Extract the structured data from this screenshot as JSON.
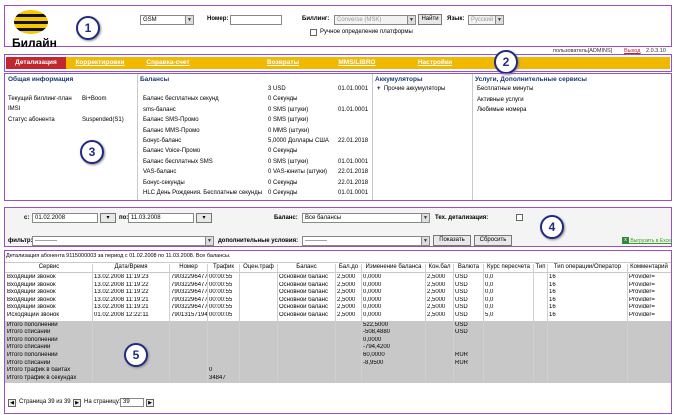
{
  "header": {
    "logo_text": "Билайн",
    "region_select": "GSM",
    "number_label": "Номер:",
    "number_value": "",
    "billing_label": "Биллинг:",
    "billing_select": "Converse (MSK)",
    "find_button": "Найти",
    "language_label": "Язык:",
    "language_select": "Русский",
    "manual_platform_label": "Ручное определение платформы",
    "user_text": "пользователь[ADMINS]",
    "user_link": "Выход",
    "version": "2.0.3.10"
  },
  "tabs": [
    {
      "label": "Детализация",
      "active": true
    },
    {
      "label": "Корректировки",
      "active": false
    },
    {
      "label": "Справка-счет",
      "active": false
    },
    {
      "label": "Возвраты",
      "active": false
    },
    {
      "label": "MMS/LIBRO",
      "active": false
    },
    {
      "label": "Настройки",
      "active": false
    }
  ],
  "info": {
    "general": {
      "title": "Общая информация",
      "rows": [
        {
          "label": "Текущий биллинг-план",
          "value": "Bi+Boom"
        },
        {
          "label": "IMSI",
          "value": ""
        },
        {
          "label": "Статус абонента",
          "value": "Suspended(S1)"
        }
      ]
    },
    "balances": {
      "title": "Балансы",
      "rows": [
        {
          "label": "",
          "value": "3 USD",
          "date": "01.01.0001"
        },
        {
          "label": "Баланс бесплатных секунд",
          "value": "0 Секунды",
          "date": ""
        },
        {
          "label": "sms-баланс",
          "value": "0 SMS (штуки)",
          "date": "01.01.0001"
        },
        {
          "label": "Баланс SMS-Промо",
          "value": "0 SMS (штуки)",
          "date": ""
        },
        {
          "label": "Баланс MMS-Промо",
          "value": "0 MMS (штуки)",
          "date": ""
        },
        {
          "label": "Бонус-баланс",
          "value": "5,0000 Доллары США",
          "date": "22.01.2018"
        },
        {
          "label": "Баланс Voice-Промо",
          "value": "0 Секунды",
          "date": ""
        },
        {
          "label": "Баланс бесплатных SMS",
          "value": "0 SMS (штуки)",
          "date": "01.01.0001"
        },
        {
          "label": "VAS-баланс",
          "value": "0 VAS-юниты (штуки)",
          "date": "22.01.2018"
        },
        {
          "label": "Бонус-секунды",
          "value": "0 Секунды",
          "date": "22.01.2018"
        },
        {
          "label": "HLC День Рождения. Бесплатные секунды",
          "value": "0 Секунды",
          "date": "01.01.0001"
        }
      ]
    },
    "accumulators": {
      "title": "Аккумуляторы",
      "rows": [
        "Прочие аккумуляторы"
      ]
    },
    "services": {
      "title": "Услуги, Дополнительные сервисы",
      "rows": [
        "Бесплатные минуты",
        "Активные услуги",
        "Любимые номера"
      ]
    }
  },
  "filters": {
    "from_label": "с:",
    "from_value": "01.02.2008",
    "to_label": "по:",
    "to_value": "11.03.2008",
    "balance_label": "Баланс:",
    "balance_value": "Все балансы",
    "tech_detail_label": "Тех. детализация:",
    "filter_label": "фильтр:",
    "filter_value": "-----------",
    "extra_label": "дополнительные условия:",
    "extra_value": "-----------",
    "show_button": "Показать",
    "reset_button": "Сбросить",
    "export_link": "Выгрузить в Excel"
  },
  "detail": {
    "caption": "Детализация абонента 9115000003 за период с 01.02.2008 по 11.03.2008. Все балансы.",
    "columns": [
      "Сервис",
      "Дата/Время",
      "Номер",
      "Трафик",
      "Оцен.траф",
      "Баланс",
      "Бал.до",
      "Изменение баланса",
      "Кон.бал",
      "Валюта",
      "Курс пересчета",
      "Тип",
      "Тип операции/Оператор",
      "Комментарий"
    ],
    "rows": [
      [
        "Входящий звонок",
        "13.02.2008 11:19:23",
        "79032296477",
        "00:00:55",
        "",
        "Основной баланс",
        "2,5000",
        "0,0000",
        "2,5000",
        "USD",
        "0,0",
        "",
        "16",
        "Provider="
      ],
      [
        "Входящий звонок",
        "13.02.2008 11:19:22",
        "79032296477",
        "00:00:55",
        "",
        "Основной баланс",
        "2,5000",
        "0,0000",
        "2,5000",
        "USD",
        "0,0",
        "",
        "16",
        "Provider="
      ],
      [
        "Входящий звонок",
        "13.02.2008 11:19:22",
        "79032296477",
        "00:00:55",
        "",
        "Основной баланс",
        "2,5000",
        "0,0000",
        "2,5000",
        "USD",
        "0,0",
        "",
        "16",
        "Provider="
      ],
      [
        "Входящий звонок",
        "13.02.2008 11:19:21",
        "79032296477",
        "00:00:55",
        "",
        "Основной баланс",
        "2,5000",
        "0,0000",
        "2,5000",
        "USD",
        "0,0",
        "",
        "16",
        "Provider="
      ],
      [
        "Входящий звонок",
        "13.02.2008 11:19:21",
        "79032296477",
        "00:00:55",
        "",
        "Основной баланс",
        "2,5000",
        "0,0000",
        "2,5000",
        "USD",
        "0,0",
        "",
        "16",
        "Provider="
      ],
      [
        "Исходящий звонок",
        "01.02.2008 12:22:11",
        "79013157194",
        "00:00:05",
        "",
        "Основной баланс",
        "2,5000",
        "0,0000",
        "2,5000",
        "USD",
        "5,0",
        "",
        "16",
        "Provider="
      ]
    ],
    "totals": [
      {
        "label": "Итого пополнений",
        "value": "522,5000",
        "cur": "USD"
      },
      {
        "label": "Итого списаний",
        "value": "-508,4880",
        "cur": "USD"
      },
      {
        "label": "Итого пополнений",
        "value": "0,0000",
        "cur": ""
      },
      {
        "label": "Итого списаний",
        "value": "-794,4200",
        "cur": ""
      },
      {
        "label": "Итого пополнений",
        "value": "60,0000",
        "cur": "RUR"
      },
      {
        "label": "Итого списаний",
        "value": "-8,9500",
        "cur": "RUR"
      },
      {
        "label": "Итого трафик в байтах",
        "traffic": "0"
      },
      {
        "label": "Итого трафик в секундах",
        "traffic": "34847"
      }
    ],
    "pager": {
      "page_text": "Страница 39 из 39",
      "per_page_label": "На страницу:",
      "page_input": "39"
    }
  },
  "badges": [
    "1",
    "2",
    "3",
    "4",
    "5"
  ],
  "colors": {
    "tabbar": "#f1b800",
    "active_tab": "#c1272d",
    "frame": "#9a4fc8",
    "badge": "#1f2a80"
  }
}
